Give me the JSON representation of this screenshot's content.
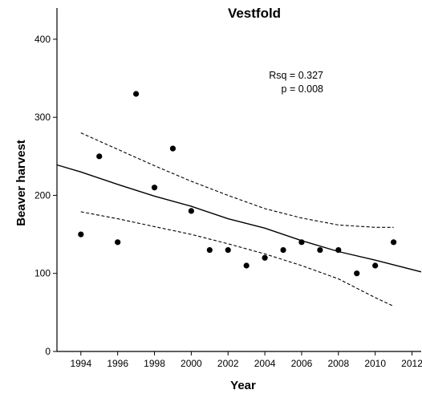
{
  "chart_data": {
    "type": "scatter",
    "title": "Vestfold",
    "xlabel": "Year",
    "ylabel": "Beaver harvest",
    "xlim": [
      1992.7,
      2012.5
    ],
    "ylim": [
      0,
      440
    ],
    "x_ticks": [
      1994,
      1996,
      1998,
      2000,
      2002,
      2004,
      2006,
      2008,
      2010,
      2012
    ],
    "y_ticks": [
      0,
      100,
      200,
      300,
      400
    ],
    "x_tick_labels": [
      "1994",
      "1996",
      "1998",
      "2000",
      "2002",
      "2004",
      "2006",
      "2008",
      "2010",
      "2012"
    ],
    "y_tick_labels": [
      "0",
      "100",
      "200",
      "300",
      "400"
    ],
    "grid": false,
    "annotations": [
      "Rsq = 0.327",
      "p = 0.008"
    ],
    "points": [
      {
        "x": 1994,
        "y": 150
      },
      {
        "x": 1995,
        "y": 250
      },
      {
        "x": 1996,
        "y": 140
      },
      {
        "x": 1997,
        "y": 330
      },
      {
        "x": 1998,
        "y": 210
      },
      {
        "x": 1999,
        "y": 260
      },
      {
        "x": 2000,
        "y": 180
      },
      {
        "x": 2001,
        "y": 130
      },
      {
        "x": 2002,
        "y": 130
      },
      {
        "x": 2003,
        "y": 110
      },
      {
        "x": 2004,
        "y": 120
      },
      {
        "x": 2005,
        "y": 130
      },
      {
        "x": 2006,
        "y": 140
      },
      {
        "x": 2007,
        "y": 130
      },
      {
        "x": 2008,
        "y": 130
      },
      {
        "x": 2009,
        "y": 100
      },
      {
        "x": 2010,
        "y": 110
      },
      {
        "x": 2011,
        "y": 140
      }
    ],
    "fit_line": [
      {
        "x": 1992.7,
        "y": 239
      },
      {
        "x": 1994,
        "y": 230
      },
      {
        "x": 1996,
        "y": 214
      },
      {
        "x": 1998,
        "y": 199
      },
      {
        "x": 2000,
        "y": 186
      },
      {
        "x": 2002,
        "y": 170
      },
      {
        "x": 2004,
        "y": 158
      },
      {
        "x": 2006,
        "y": 142
      },
      {
        "x": 2008,
        "y": 128
      },
      {
        "x": 2010,
        "y": 117
      },
      {
        "x": 2012.5,
        "y": 102
      }
    ],
    "ci_upper": [
      {
        "x": 1994,
        "y": 280
      },
      {
        "x": 1996,
        "y": 259
      },
      {
        "x": 1998,
        "y": 238
      },
      {
        "x": 2000,
        "y": 218
      },
      {
        "x": 2002,
        "y": 200
      },
      {
        "x": 2004,
        "y": 183
      },
      {
        "x": 2006,
        "y": 171
      },
      {
        "x": 2008,
        "y": 162
      },
      {
        "x": 2010,
        "y": 159
      },
      {
        "x": 2011,
        "y": 159
      }
    ],
    "ci_lower": [
      {
        "x": 1994,
        "y": 179
      },
      {
        "x": 1996,
        "y": 170
      },
      {
        "x": 1998,
        "y": 160
      },
      {
        "x": 2000,
        "y": 150
      },
      {
        "x": 2002,
        "y": 138
      },
      {
        "x": 2004,
        "y": 125
      },
      {
        "x": 2006,
        "y": 110
      },
      {
        "x": 2008,
        "y": 93
      },
      {
        "x": 2010,
        "y": 69
      },
      {
        "x": 2011,
        "y": 58
      }
    ]
  }
}
